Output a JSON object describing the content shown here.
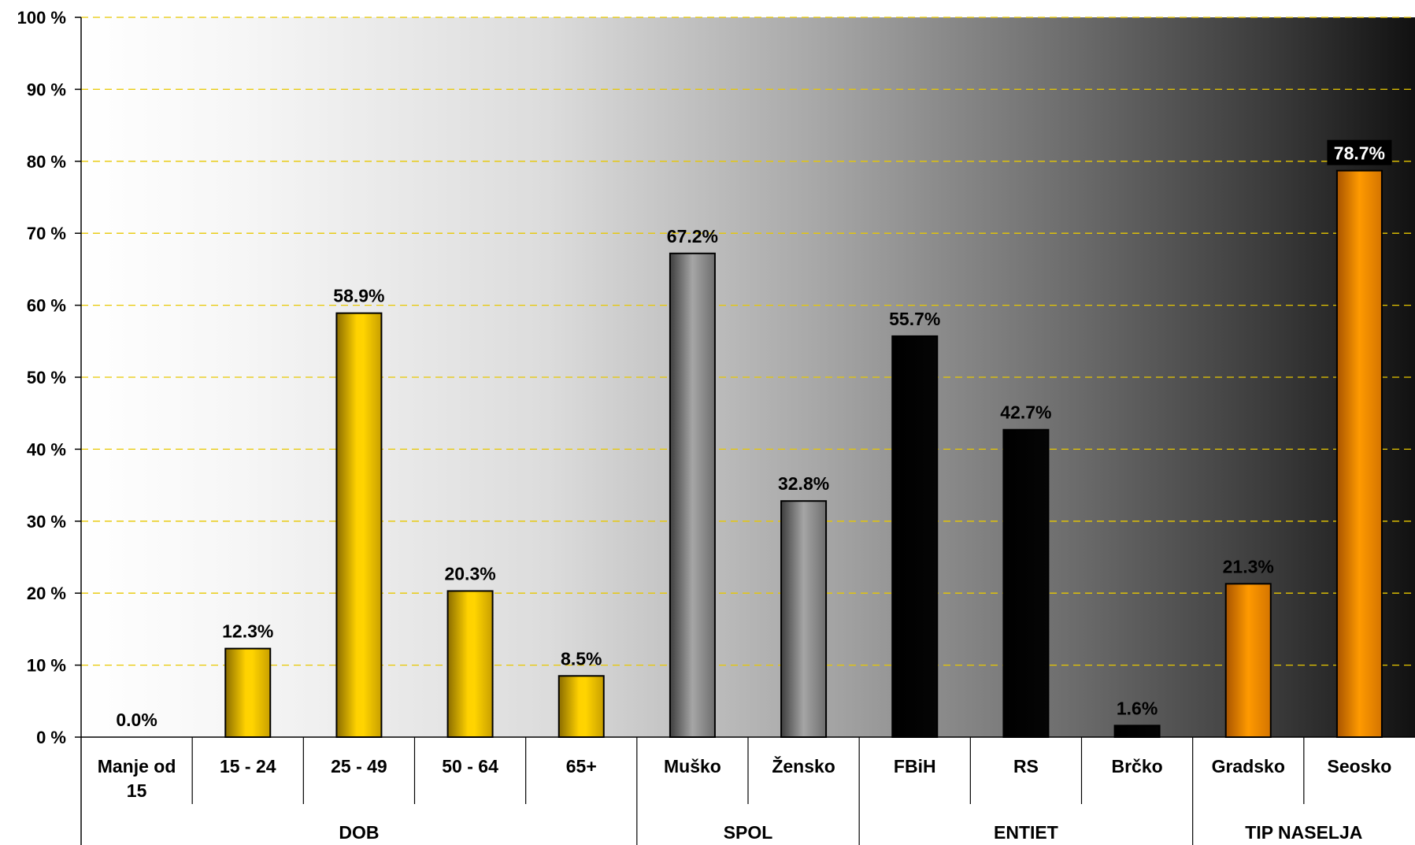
{
  "chart_data": {
    "type": "bar",
    "ylim": [
      0,
      100
    ],
    "yticks": [
      "0 %",
      "10 %",
      "20 %",
      "30 %",
      "40 %",
      "50 %",
      "60 %",
      "70 %",
      "80 %",
      "90 %",
      "100 %"
    ],
    "grid": "horizontal dashed",
    "colors": {
      "yellow": "#f5c400",
      "gray": "#8c8c8c",
      "black": "#000000",
      "orange": "#f58c00",
      "gridline": "#e8c800"
    },
    "categories": [
      {
        "label": [
          "Manje od",
          "15"
        ],
        "value": 0.0,
        "value_label": "0.0%",
        "color": "yellow",
        "group": 0
      },
      {
        "label": [
          "15 - 24"
        ],
        "value": 12.3,
        "value_label": "12.3%",
        "color": "yellow",
        "group": 0
      },
      {
        "label": [
          "25 - 49"
        ],
        "value": 58.9,
        "value_label": "58.9%",
        "color": "yellow",
        "group": 0
      },
      {
        "label": [
          "50 - 64"
        ],
        "value": 20.3,
        "value_label": "20.3%",
        "color": "yellow",
        "group": 0
      },
      {
        "label": [
          "65+"
        ],
        "value": 8.5,
        "value_label": "8.5%",
        "color": "yellow",
        "group": 0
      },
      {
        "label": [
          "Muško"
        ],
        "value": 67.2,
        "value_label": "67.2%",
        "color": "gray",
        "group": 1
      },
      {
        "label": [
          "Žensko"
        ],
        "value": 32.8,
        "value_label": "32.8%",
        "color": "gray",
        "group": 1
      },
      {
        "label": [
          "FBiH"
        ],
        "value": 55.7,
        "value_label": "55.7%",
        "color": "black",
        "group": 2
      },
      {
        "label": [
          "RS"
        ],
        "value": 42.7,
        "value_label": "42.7%",
        "color": "black",
        "group": 2
      },
      {
        "label": [
          "Brčko"
        ],
        "value": 1.6,
        "value_label": "1.6%",
        "color": "black",
        "group": 2
      },
      {
        "label": [
          "Gradsko"
        ],
        "value": 21.3,
        "value_label": "21.3%",
        "color": "orange",
        "group": 3
      },
      {
        "label": [
          "Seosko"
        ],
        "value": 78.7,
        "value_label": "78.7%",
        "color": "orange",
        "group": 3,
        "highlight": true
      }
    ],
    "groups": [
      {
        "label": "DOB",
        "span": 5
      },
      {
        "label": "SPOL",
        "span": 2
      },
      {
        "label": "ENTIET",
        "span": 3
      },
      {
        "label": "TIP NASELJA",
        "span": 2
      }
    ]
  }
}
